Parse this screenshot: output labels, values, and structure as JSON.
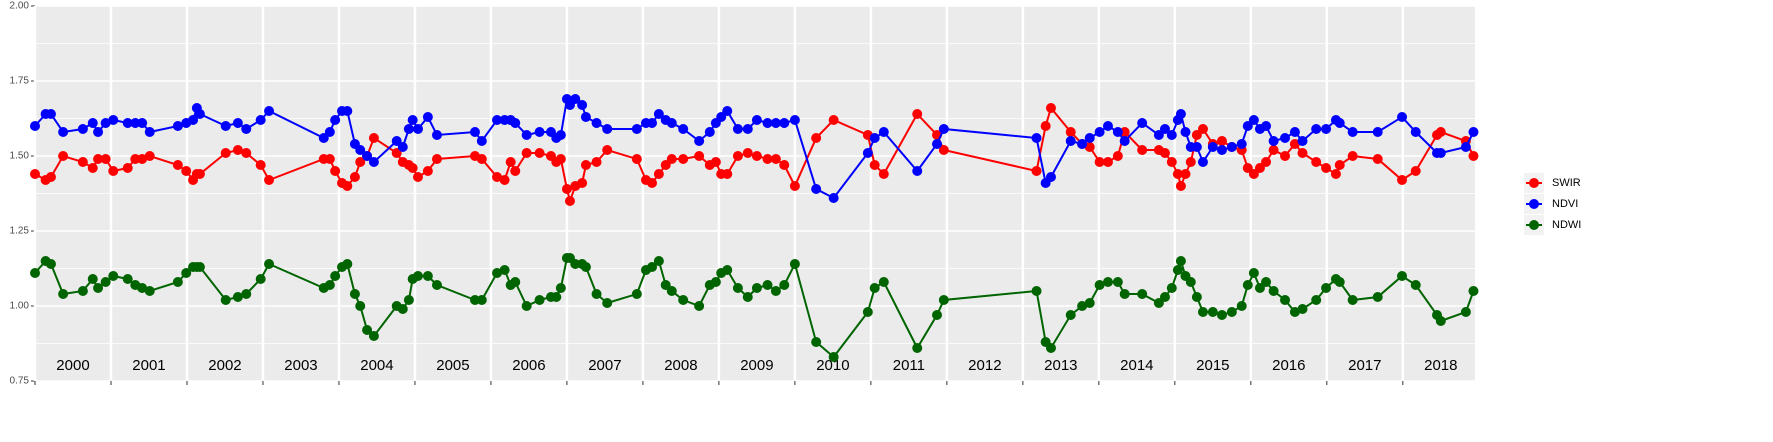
{
  "chart_data": {
    "type": "line",
    "x": [
      2000,
      2000.14,
      2000.21,
      2000.37,
      2000.63,
      2000.76,
      2000.83,
      2000.93,
      2001.03,
      2001.22,
      2001.32,
      2001.41,
      2001.51,
      2001.88,
      2001.99,
      2002.08,
      2002.13,
      2002.17,
      2002.51,
      2002.67,
      2002.78,
      2002.97,
      2003.08,
      2003.8,
      2003.88,
      2003.95,
      2004.04,
      2004.11,
      2004.21,
      2004.28,
      2004.37,
      2004.46,
      2004.76,
      2004.84,
      2004.92,
      2004.97,
      2005.04,
      2005.17,
      2005.29,
      2005.79,
      2005.88,
      2006.08,
      2006.18,
      2006.26,
      2006.32,
      2006.47,
      2006.64,
      2006.79,
      2006.86,
      2006.92,
      2007,
      2007.04,
      2007.11,
      2007.2,
      2007.25,
      2007.39,
      2007.53,
      2007.92,
      2008.04,
      2008.12,
      2008.21,
      2008.3,
      2008.38,
      2008.53,
      2008.74,
      2008.88,
      2008.96,
      2009.03,
      2009.11,
      2009.25,
      2009.38,
      2009.5,
      2009.64,
      2009.75,
      2009.86,
      2010,
      2010.28,
      2010.51,
      2010.96,
      2011.05,
      2011.17,
      2011.61,
      2011.87,
      2011.96,
      2013.18,
      2013.3,
      2013.37,
      2013.63,
      2013.78,
      2013.88,
      2014.01,
      2014.12,
      2014.25,
      2014.34,
      2014.57,
      2014.79,
      2014.87,
      2014.96,
      2015.04,
      2015.08,
      2015.14,
      2015.21,
      2015.29,
      2015.37,
      2015.5,
      2015.62,
      2015.75,
      2015.88,
      2015.96,
      2016.04,
      2016.12,
      2016.2,
      2016.3,
      2016.45,
      2016.58,
      2016.68,
      2016.86,
      2016.99,
      2017.12,
      2017.17,
      2017.34,
      2017.67,
      2017.99,
      2018.17,
      2018.45,
      2018.5,
      2018.83,
      2018.93
    ],
    "series": [
      {
        "name": "SWIR",
        "color": "#ff0000",
        "values": [
          1.44,
          1.42,
          1.43,
          1.5,
          1.48,
          1.46,
          1.49,
          1.49,
          1.45,
          1.46,
          1.49,
          1.49,
          1.5,
          1.47,
          1.45,
          1.42,
          1.44,
          1.44,
          1.51,
          1.52,
          1.51,
          1.47,
          1.42,
          1.49,
          1.49,
          1.45,
          1.41,
          1.4,
          1.43,
          1.48,
          1.5,
          1.56,
          1.51,
          1.48,
          1.47,
          1.46,
          1.43,
          1.45,
          1.49,
          1.5,
          1.49,
          1.43,
          1.42,
          1.48,
          1.45,
          1.51,
          1.51,
          1.5,
          1.48,
          1.49,
          1.39,
          1.35,
          1.4,
          1.41,
          1.47,
          1.48,
          1.52,
          1.49,
          1.42,
          1.41,
          1.44,
          1.47,
          1.49,
          1.49,
          1.5,
          1.47,
          1.48,
          1.44,
          1.44,
          1.5,
          1.51,
          1.5,
          1.49,
          1.49,
          1.47,
          1.4,
          1.56,
          1.62,
          1.57,
          1.47,
          1.44,
          1.64,
          1.57,
          1.52,
          1.45,
          1.6,
          1.66,
          1.58,
          1.54,
          1.53,
          1.48,
          1.48,
          1.5,
          1.58,
          1.52,
          1.52,
          1.51,
          1.48,
          1.44,
          1.4,
          1.44,
          1.48,
          1.57,
          1.59,
          1.54,
          1.55,
          1.53,
          1.52,
          1.46,
          1.44,
          1.46,
          1.48,
          1.52,
          1.5,
          1.54,
          1.51,
          1.48,
          1.46,
          1.44,
          1.47,
          1.5,
          1.49,
          1.42,
          1.45,
          1.57,
          1.58,
          1.55,
          1.5
        ]
      },
      {
        "name": "NDVI",
        "color": "#0000ff",
        "values": [
          1.6,
          1.64,
          1.64,
          1.58,
          1.59,
          1.61,
          1.58,
          1.61,
          1.62,
          1.61,
          1.61,
          1.61,
          1.58,
          1.6,
          1.61,
          1.62,
          1.66,
          1.64,
          1.6,
          1.61,
          1.59,
          1.62,
          1.65,
          1.56,
          1.58,
          1.62,
          1.65,
          1.65,
          1.54,
          1.52,
          1.5,
          1.48,
          1.55,
          1.53,
          1.59,
          1.62,
          1.59,
          1.63,
          1.57,
          1.58,
          1.55,
          1.62,
          1.62,
          1.62,
          1.61,
          1.57,
          1.58,
          1.58,
          1.56,
          1.57,
          1.69,
          1.67,
          1.69,
          1.67,
          1.63,
          1.61,
          1.59,
          1.59,
          1.61,
          1.61,
          1.64,
          1.62,
          1.61,
          1.59,
          1.55,
          1.58,
          1.61,
          1.63,
          1.65,
          1.59,
          1.59,
          1.62,
          1.61,
          1.61,
          1.61,
          1.62,
          1.39,
          1.36,
          1.51,
          1.56,
          1.58,
          1.45,
          1.54,
          1.59,
          1.56,
          1.41,
          1.43,
          1.55,
          1.54,
          1.56,
          1.58,
          1.6,
          1.58,
          1.55,
          1.61,
          1.57,
          1.59,
          1.57,
          1.62,
          1.64,
          1.58,
          1.53,
          1.53,
          1.48,
          1.53,
          1.52,
          1.53,
          1.54,
          1.6,
          1.62,
          1.59,
          1.6,
          1.55,
          1.56,
          1.58,
          1.55,
          1.59,
          1.59,
          1.62,
          1.61,
          1.58,
          1.58,
          1.63,
          1.58,
          1.51,
          1.51,
          1.53,
          1.58
        ]
      },
      {
        "name": "NDWI",
        "color": "#006400",
        "values": [
          1.11,
          1.15,
          1.14,
          1.04,
          1.05,
          1.09,
          1.06,
          1.08,
          1.1,
          1.09,
          1.07,
          1.06,
          1.05,
          1.08,
          1.11,
          1.13,
          1.13,
          1.13,
          1.02,
          1.03,
          1.04,
          1.09,
          1.14,
          1.06,
          1.07,
          1.1,
          1.13,
          1.14,
          1.04,
          1,
          0.92,
          0.9,
          1,
          0.99,
          1.02,
          1.09,
          1.1,
          1.1,
          1.07,
          1.02,
          1.02,
          1.11,
          1.12,
          1.07,
          1.08,
          1,
          1.02,
          1.03,
          1.03,
          1.06,
          1.16,
          1.16,
          1.14,
          1.14,
          1.13,
          1.04,
          1.01,
          1.04,
          1.12,
          1.13,
          1.15,
          1.07,
          1.05,
          1.02,
          1,
          1.07,
          1.08,
          1.11,
          1.12,
          1.06,
          1.03,
          1.06,
          1.07,
          1.05,
          1.07,
          1.14,
          0.88,
          0.83,
          0.98,
          1.06,
          1.08,
          0.86,
          0.97,
          1.02,
          1.05,
          0.88,
          0.86,
          0.97,
          1,
          1.01,
          1.07,
          1.08,
          1.08,
          1.04,
          1.04,
          1.01,
          1.03,
          1.06,
          1.12,
          1.15,
          1.1,
          1.08,
          1.03,
          0.98,
          0.98,
          0.97,
          0.98,
          1,
          1.07,
          1.11,
          1.06,
          1.08,
          1.05,
          1.02,
          0.98,
          0.99,
          1.02,
          1.06,
          1.09,
          1.08,
          1.02,
          1.03,
          1.1,
          1.07,
          0.97,
          0.95,
          0.98,
          1.05
        ]
      }
    ],
    "xlim": [
      2000,
      2018.95
    ],
    "xticks": [
      2000,
      2001,
      2002,
      2003,
      2004,
      2005,
      2006,
      2007,
      2008,
      2009,
      2010,
      2011,
      2012,
      2013,
      2014,
      2015,
      2016,
      2017,
      2018
    ],
    "ylim": [
      0.75,
      2
    ],
    "yticks": [
      {
        "value": 0.75,
        "label": "0.75"
      },
      {
        "value": 1,
        "label": "1.00"
      },
      {
        "value": 1.25,
        "label": "1.25"
      },
      {
        "value": 1.5,
        "label": "1.50"
      },
      {
        "value": 1.75,
        "label": "1.75"
      },
      {
        "value": 2,
        "label": "2.00"
      }
    ],
    "grid": true,
    "legend": "right"
  }
}
